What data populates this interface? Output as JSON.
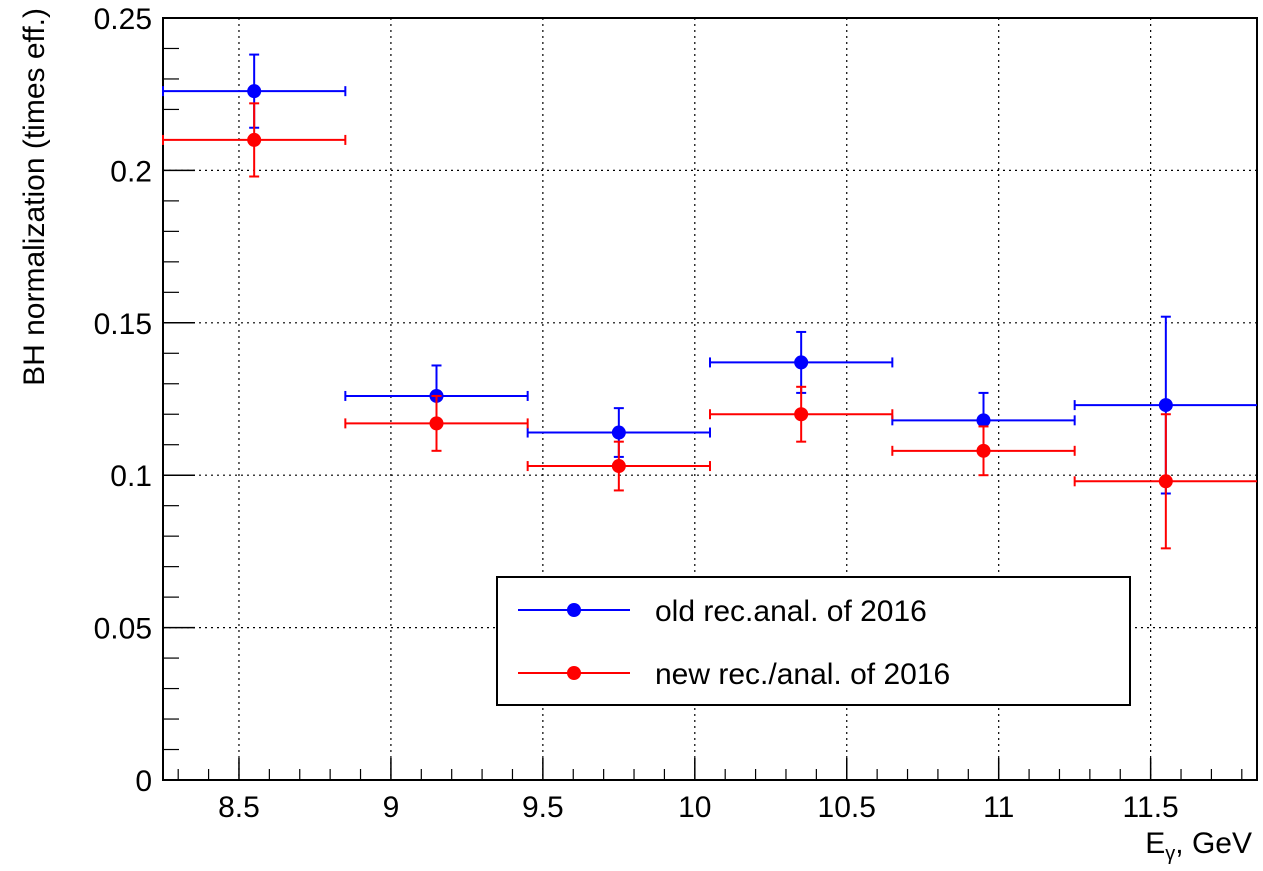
{
  "chart_data": {
    "type": "scatter",
    "title": "",
    "xlabel": "E",
    "xlabel_sub": "γ",
    "xlabel_suffix": ", GeV",
    "ylabel": "BH normalization (times eff.)",
    "xlim": [
      8.25,
      11.85
    ],
    "ylim": [
      0,
      0.25
    ],
    "grid": true,
    "x_ticks": [
      "8.5",
      "9",
      "9.5",
      "10",
      "10.5",
      "11",
      "11.5"
    ],
    "y_ticks": [
      "0",
      "0.05",
      "0.1",
      "0.15",
      "0.2",
      "0.25"
    ],
    "legend_position": "bottom-center",
    "series": [
      {
        "name": "old rec.anal. of 2016",
        "color": "#0000ff",
        "points": [
          {
            "x": 8.55,
            "xerr": 0.3,
            "y": 0.226,
            "yerr": 0.012
          },
          {
            "x": 9.15,
            "xerr": 0.3,
            "y": 0.126,
            "yerr": 0.01
          },
          {
            "x": 9.75,
            "xerr": 0.3,
            "y": 0.114,
            "yerr": 0.008
          },
          {
            "x": 10.35,
            "xerr": 0.3,
            "y": 0.137,
            "yerr": 0.01
          },
          {
            "x": 10.95,
            "xerr": 0.3,
            "y": 0.118,
            "yerr": 0.009
          },
          {
            "x": 11.55,
            "xerr": 0.3,
            "y": 0.123,
            "yerr": 0.029
          }
        ]
      },
      {
        "name": "new rec./anal. of 2016",
        "color": "#ff0000",
        "points": [
          {
            "x": 8.55,
            "xerr": 0.3,
            "y": 0.21,
            "yerr": 0.012
          },
          {
            "x": 9.15,
            "xerr": 0.3,
            "y": 0.117,
            "yerr": 0.009
          },
          {
            "x": 9.75,
            "xerr": 0.3,
            "y": 0.103,
            "yerr": 0.008
          },
          {
            "x": 10.35,
            "xerr": 0.3,
            "y": 0.12,
            "yerr": 0.009
          },
          {
            "x": 10.95,
            "xerr": 0.3,
            "y": 0.108,
            "yerr": 0.008
          },
          {
            "x": 11.55,
            "xerr": 0.3,
            "y": 0.098,
            "yerr": 0.022
          }
        ]
      }
    ]
  }
}
